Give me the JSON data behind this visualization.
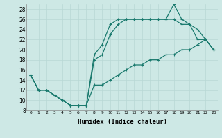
{
  "xlabel": "Humidex (Indice chaleur)",
  "ylabel": "",
  "bg_color": "#cde8e5",
  "line_color": "#1a7a6e",
  "grid_color": "#b8d8d5",
  "xlim": [
    -0.5,
    23.5
  ],
  "ylim": [
    8,
    29
  ],
  "xticks": [
    0,
    1,
    2,
    3,
    4,
    5,
    6,
    7,
    8,
    9,
    10,
    11,
    12,
    13,
    14,
    15,
    16,
    17,
    18,
    19,
    20,
    21,
    22,
    23
  ],
  "yticks": [
    8,
    10,
    12,
    14,
    16,
    18,
    20,
    22,
    24,
    26,
    28
  ],
  "line1": {
    "x": [
      0,
      1,
      2,
      3,
      4,
      5,
      6,
      7,
      8,
      9,
      10,
      11,
      12,
      13,
      14,
      15,
      16,
      17,
      18,
      19,
      20,
      21,
      22,
      23
    ],
    "y": [
      15,
      12,
      12,
      11,
      10,
      9,
      9,
      9,
      13,
      13,
      14,
      15,
      16,
      17,
      17,
      18,
      18,
      19,
      19,
      20,
      20,
      21,
      22,
      20
    ]
  },
  "line2": {
    "x": [
      0,
      1,
      2,
      3,
      4,
      5,
      6,
      7,
      8,
      9,
      10,
      11,
      12,
      13,
      14,
      15,
      16,
      17,
      18,
      19,
      20,
      21,
      22,
      23
    ],
    "y": [
      15,
      12,
      12,
      11,
      10,
      9,
      9,
      9,
      18,
      19,
      23,
      25,
      26,
      26,
      26,
      26,
      26,
      26,
      26,
      25,
      25,
      22,
      22,
      20
    ]
  },
  "line3": {
    "x": [
      0,
      1,
      2,
      3,
      4,
      5,
      6,
      7,
      8,
      9,
      10,
      11,
      12,
      13,
      14,
      15,
      16,
      17,
      18,
      19,
      20,
      21,
      22,
      23
    ],
    "y": [
      15,
      12,
      12,
      11,
      10,
      9,
      9,
      9,
      19,
      21,
      25,
      26,
      26,
      26,
      26,
      26,
      26,
      26,
      29,
      26,
      25,
      24,
      22,
      20
    ]
  }
}
